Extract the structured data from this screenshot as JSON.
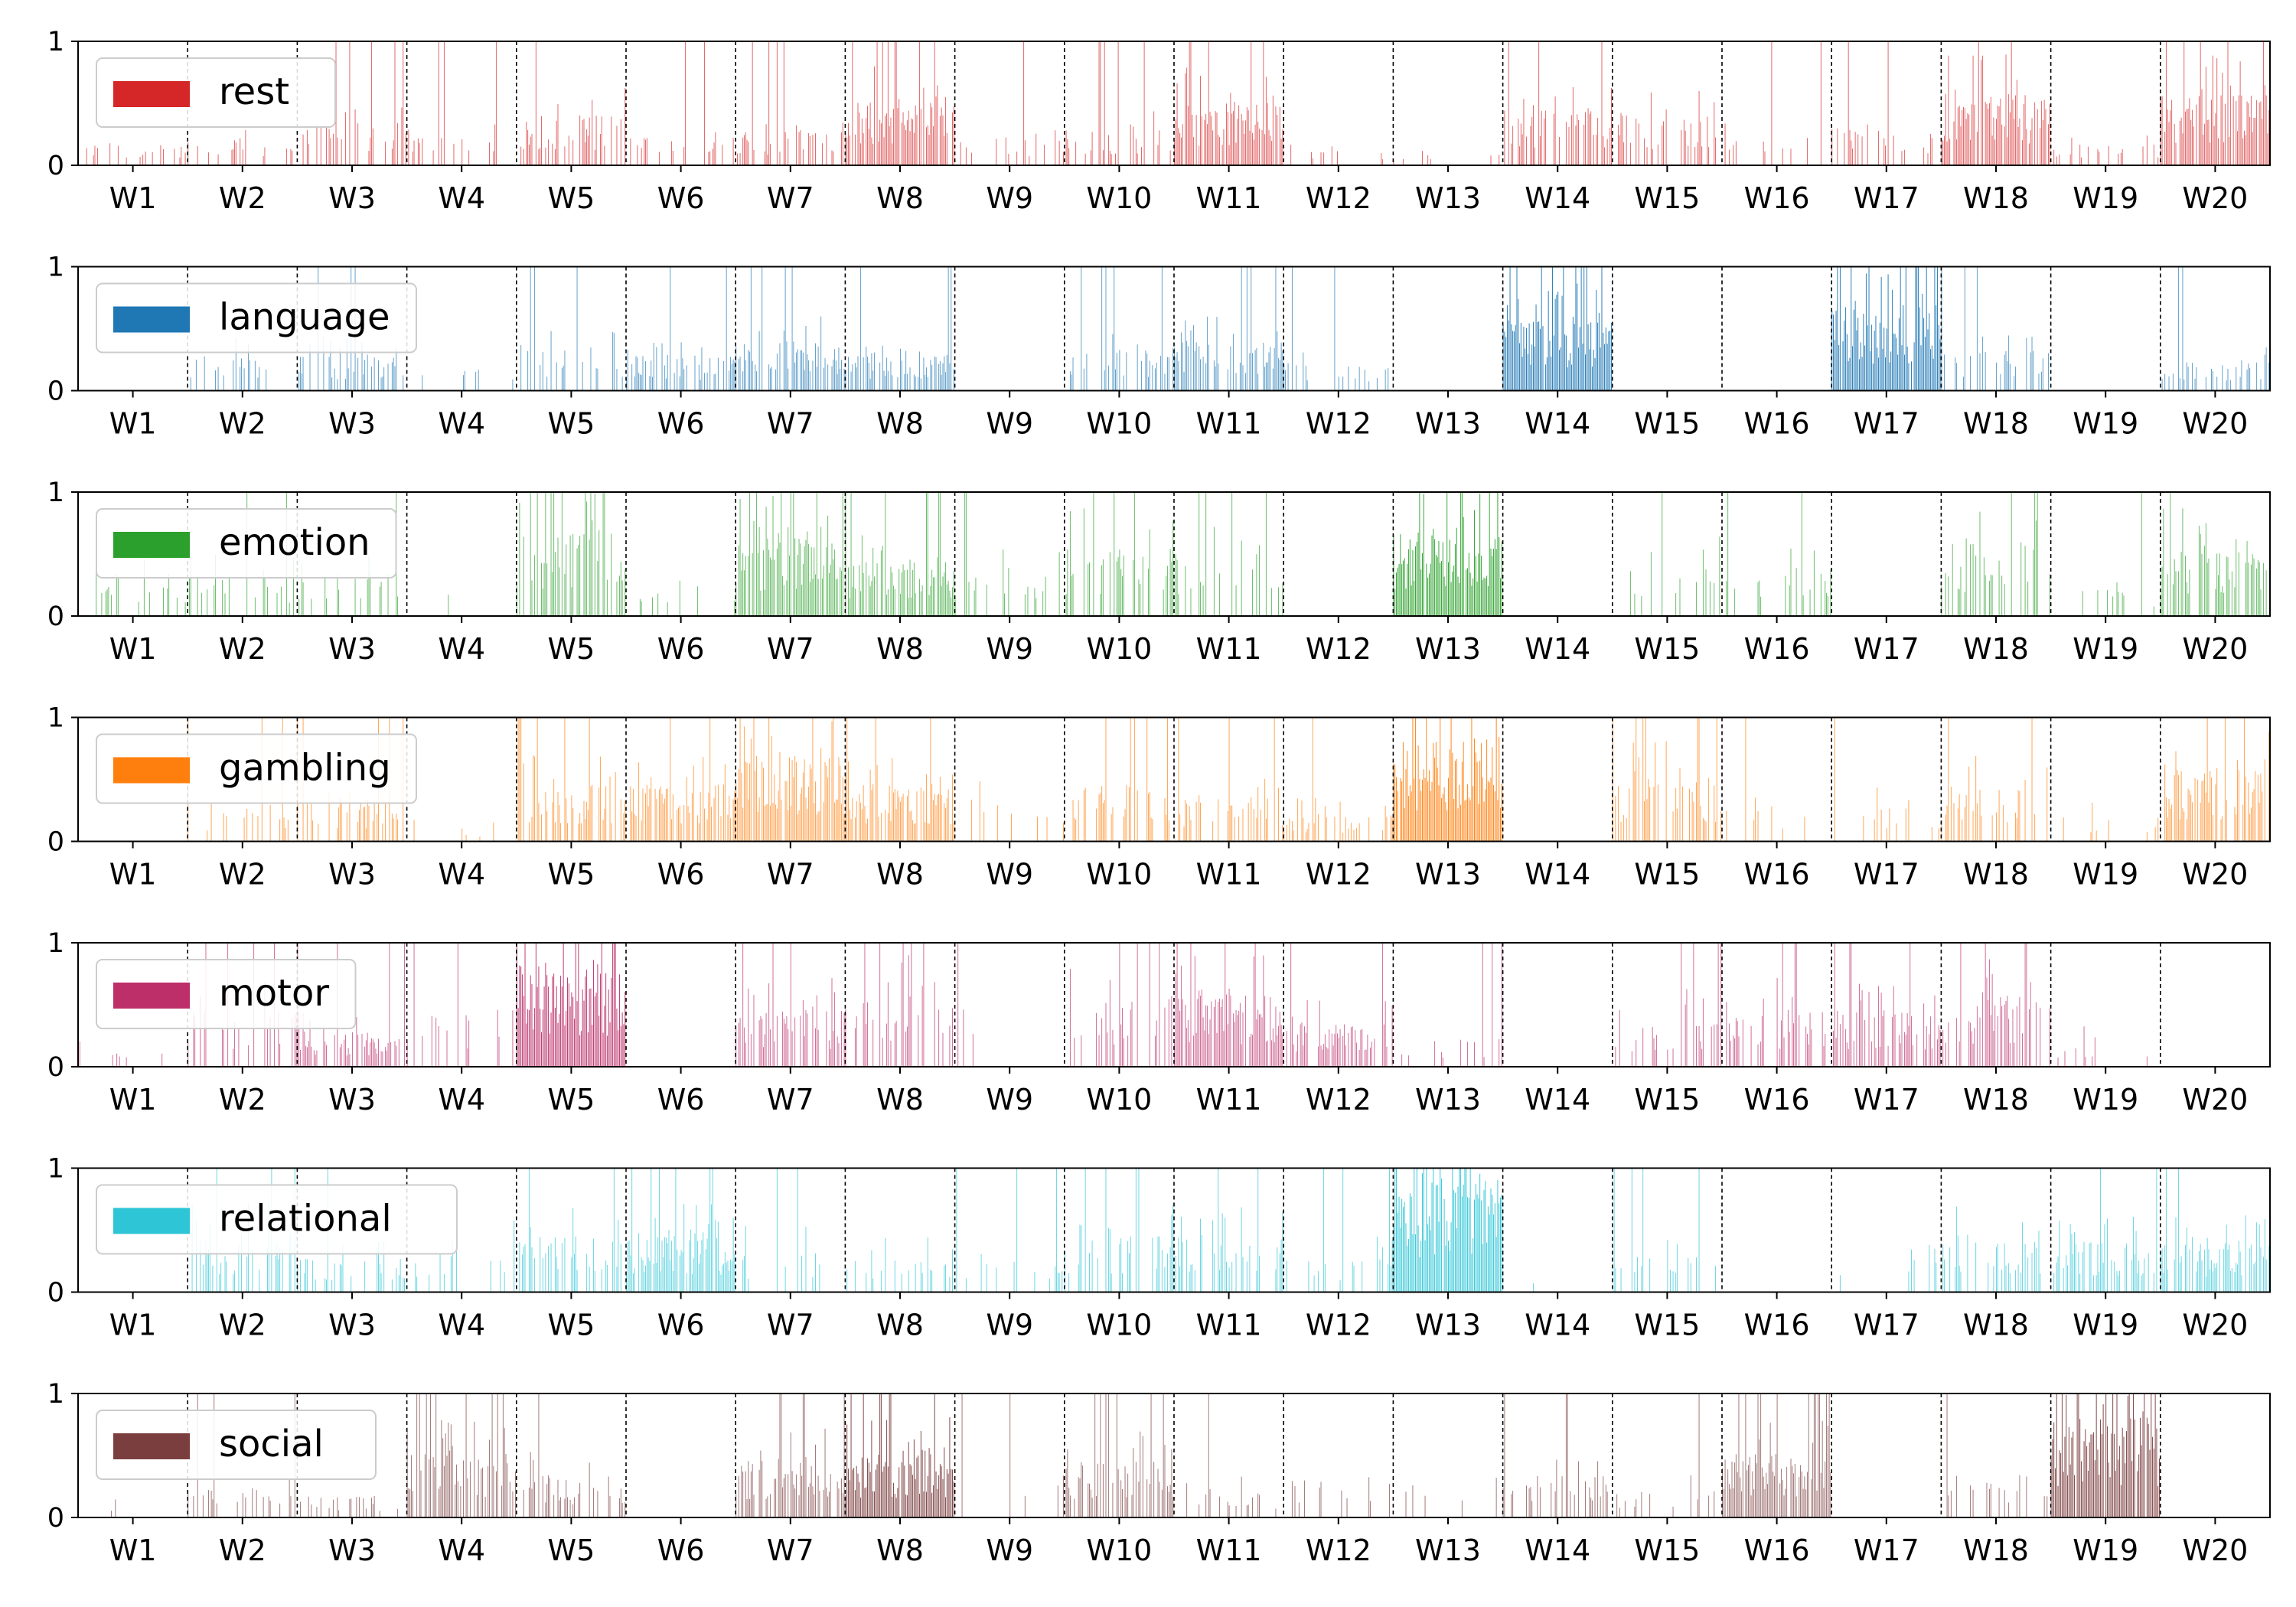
{
  "chart_data": {
    "type": "bar",
    "weeks": [
      "W1",
      "W2",
      "W3",
      "W4",
      "W5",
      "W6",
      "W7",
      "W8",
      "W9",
      "W10",
      "W11",
      "W12",
      "W13",
      "W14",
      "W15",
      "W16",
      "W17",
      "W18",
      "W19",
      "W20"
    ],
    "ylim": [
      0,
      1
    ],
    "yticks": [
      "0",
      "1"
    ],
    "separators": "dashed vertical line at each week boundary",
    "legend_placement": "upper-left of each panel",
    "series": [
      {
        "name": "rest",
        "color": "#d62728",
        "weekly_level": [
          0.15,
          0.2,
          0.3,
          0.2,
          0.35,
          0.2,
          0.25,
          0.45,
          0.2,
          0.25,
          0.45,
          0.1,
          0.08,
          0.4,
          0.35,
          0.2,
          0.25,
          0.5,
          0.15,
          0.5
        ],
        "weekly_density": [
          0.25,
          0.25,
          0.45,
          0.2,
          0.55,
          0.25,
          0.35,
          0.85,
          0.15,
          0.3,
          0.85,
          0.1,
          0.08,
          0.55,
          0.4,
          0.1,
          0.25,
          0.9,
          0.2,
          0.9
        ]
      },
      {
        "name": "language",
        "color": "#1f77b4",
        "weekly_level": [
          0.0,
          0.25,
          0.25,
          0.15,
          0.3,
          0.25,
          0.35,
          0.25,
          0.0,
          0.3,
          0.35,
          0.2,
          0.0,
          0.5,
          0.0,
          0.0,
          0.6,
          0.3,
          0.0,
          0.2
        ],
        "weekly_density": [
          0.0,
          0.3,
          0.3,
          0.1,
          0.3,
          0.6,
          0.7,
          0.6,
          0.0,
          0.4,
          0.7,
          0.2,
          0.0,
          0.98,
          0.0,
          0.0,
          0.98,
          0.35,
          0.0,
          0.35
        ]
      },
      {
        "name": "emotion",
        "color": "#2ca02c",
        "weekly_level": [
          0.3,
          0.3,
          0.3,
          0.2,
          0.6,
          0.2,
          0.55,
          0.4,
          0.3,
          0.5,
          0.4,
          0.0,
          0.6,
          0.0,
          0.4,
          0.35,
          0.0,
          0.55,
          0.2,
          0.5
        ],
        "weekly_density": [
          0.1,
          0.3,
          0.3,
          0.08,
          0.6,
          0.1,
          0.9,
          0.8,
          0.1,
          0.35,
          0.25,
          0.0,
          0.98,
          0.0,
          0.3,
          0.3,
          0.0,
          0.45,
          0.08,
          0.6
        ]
      },
      {
        "name": "gambling",
        "color": "#ff7f0e",
        "weekly_level": [
          0.0,
          0.2,
          0.3,
          0.1,
          0.4,
          0.4,
          0.6,
          0.4,
          0.3,
          0.4,
          0.3,
          0.2,
          0.7,
          0.0,
          0.45,
          0.3,
          0.3,
          0.4,
          0.2,
          0.5
        ],
        "weekly_density": [
          0.0,
          0.2,
          0.4,
          0.05,
          0.6,
          0.6,
          0.9,
          0.8,
          0.15,
          0.4,
          0.4,
          0.4,
          0.98,
          0.0,
          0.4,
          0.15,
          0.15,
          0.4,
          0.1,
          0.7
        ]
      },
      {
        "name": "motor",
        "color": "#bc2f69",
        "weekly_level": [
          0.2,
          0.4,
          0.25,
          0.4,
          0.7,
          0.0,
          0.4,
          0.5,
          0.6,
          0.5,
          0.5,
          0.3,
          0.2,
          0.0,
          0.35,
          0.4,
          0.4,
          0.5,
          0.2,
          0.0
        ],
        "weekly_density": [
          0.1,
          0.3,
          0.6,
          0.15,
          0.98,
          0.0,
          0.5,
          0.4,
          0.05,
          0.3,
          0.8,
          0.6,
          0.1,
          0.0,
          0.4,
          0.4,
          0.6,
          0.5,
          0.1,
          0.0
        ]
      },
      {
        "name": "relational",
        "color": "#2ec5d6",
        "weekly_level": [
          0.0,
          0.4,
          0.25,
          0.35,
          0.4,
          0.4,
          0.3,
          0.25,
          0.25,
          0.4,
          0.4,
          0.25,
          0.8,
          0.1,
          0.25,
          0.0,
          0.3,
          0.4,
          0.35,
          0.35
        ],
        "weekly_density": [
          0.0,
          0.4,
          0.3,
          0.15,
          0.4,
          0.85,
          0.2,
          0.25,
          0.2,
          0.5,
          0.4,
          0.2,
          0.98,
          0.05,
          0.3,
          0.0,
          0.1,
          0.4,
          0.6,
          0.6
        ]
      },
      {
        "name": "social",
        "color": "#7b3e3f",
        "weekly_level": [
          0.15,
          0.2,
          0.15,
          0.45,
          0.3,
          0.0,
          0.4,
          0.45,
          0.3,
          0.4,
          0.2,
          0.3,
          0.2,
          0.3,
          0.2,
          0.45,
          0.0,
          0.3,
          0.7,
          0.0
        ],
        "weekly_density": [
          0.05,
          0.2,
          0.15,
          0.7,
          0.35,
          0.0,
          0.6,
          0.95,
          0.1,
          0.6,
          0.2,
          0.2,
          0.1,
          0.4,
          0.2,
          0.9,
          0.0,
          0.3,
          0.98,
          0.0
        ]
      }
    ]
  }
}
